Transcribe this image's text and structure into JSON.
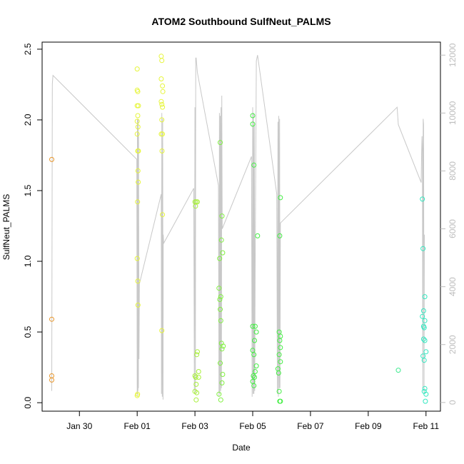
{
  "chart_data": {
    "type": "scatter",
    "title": "ATOM2 Southbound SulfNeut_PALMS",
    "xlabel": "Date",
    "ylabel": "SulfNeut_PALMS",
    "xlim": [
      "2017-01-28T17:00",
      "2017-02-11T12:00"
    ],
    "ylim": [
      -0.06,
      2.55
    ],
    "y2lim": [
      -300,
      12450
    ],
    "x_ticks": [
      {
        "date": "2017-01-30",
        "label": "Jan 30"
      },
      {
        "date": "2017-02-01",
        "label": "Feb 01"
      },
      {
        "date": "2017-02-03",
        "label": "Feb 03"
      },
      {
        "date": "2017-02-05",
        "label": "Feb 05"
      },
      {
        "date": "2017-02-07",
        "label": "Feb 07"
      },
      {
        "date": "2017-02-09",
        "label": "Feb 09"
      },
      {
        "date": "2017-02-11",
        "label": "Feb 11"
      }
    ],
    "y_ticks": [
      "0.0",
      "0.5",
      "1.0",
      "1.5",
      "2.0",
      "2.5"
    ],
    "y2_ticks": [
      "0",
      "2000",
      "4000",
      "6000",
      "8000",
      "10000",
      "12000"
    ],
    "grid": false,
    "colors": {
      "points_start": "#e8952a",
      "points_yellow": "#e6f53a",
      "points_green": "#44ee44",
      "points_end": "#33e8c0",
      "altitude_line": "#c8c8c8",
      "axis": "#000000",
      "right_axis": "#bdbdbd"
    },
    "series": [
      {
        "mark": "points",
        "points": [
          [
            "2017-01-29T01:00",
            1.72,
            "#e8952a"
          ],
          [
            "2017-01-29T01:00",
            0.59,
            "#e8952a"
          ],
          [
            "2017-01-29T01:00",
            0.19,
            "#e8952a"
          ],
          [
            "2017-01-29T01:00",
            0.16,
            "#e8952a"
          ],
          [
            "2017-02-01T00:00",
            2.36,
            "#e6f53a"
          ],
          [
            "2017-02-01T00:00",
            2.21,
            "#e6f53a"
          ],
          [
            "2017-02-01T00:30",
            2.2,
            "#e6f53a"
          ],
          [
            "2017-02-01T00:00",
            2.1,
            "#e6f53a"
          ],
          [
            "2017-02-01T01:00",
            2.1,
            "#e6f53a"
          ],
          [
            "2017-02-01T00:30",
            2.03,
            "#e6f53a"
          ],
          [
            "2017-02-01T00:00",
            1.99,
            "#e6f53a"
          ],
          [
            "2017-02-01T00:40",
            1.95,
            "#e6f53a"
          ],
          [
            "2017-02-01T00:00",
            1.9,
            "#e6f53a"
          ],
          [
            "2017-02-01T00:30",
            1.78,
            "#e6f53a"
          ],
          [
            "2017-02-01T01:00",
            1.78,
            "#e6f53a"
          ],
          [
            "2017-02-01T00:40",
            1.64,
            "#e6f53a"
          ],
          [
            "2017-02-01T00:50",
            1.56,
            "#e6f53a"
          ],
          [
            "2017-02-01T00:20",
            1.42,
            "#e6f53a"
          ],
          [
            "2017-02-01T00:00",
            1.02,
            "#e6f53a"
          ],
          [
            "2017-02-01T00:30",
            0.86,
            "#e6f53a"
          ],
          [
            "2017-02-01T00:40",
            0.69,
            "#e6f53a"
          ],
          [
            "2017-02-01T00:20",
            0.06,
            "#e6f53a"
          ],
          [
            "2017-02-01T00:00",
            0.05,
            "#e6f53a"
          ],
          [
            "2017-02-01T20:00",
            2.45,
            "#e6f53a"
          ],
          [
            "2017-02-01T20:30",
            2.42,
            "#e6f53a"
          ],
          [
            "2017-02-01T20:00",
            2.29,
            "#e6f53a"
          ],
          [
            "2017-02-01T21:00",
            2.24,
            "#e6f53a"
          ],
          [
            "2017-02-01T21:20",
            2.2,
            "#e6f53a"
          ],
          [
            "2017-02-01T20:00",
            2.13,
            "#e6f53a"
          ],
          [
            "2017-02-01T20:30",
            2.11,
            "#e6f53a"
          ],
          [
            "2017-02-01T21:00",
            2.09,
            "#e6f53a"
          ],
          [
            "2017-02-01T20:30",
            2.0,
            "#e6f53a"
          ],
          [
            "2017-02-01T20:00",
            1.9,
            "#e6f53a"
          ],
          [
            "2017-02-01T21:00",
            1.9,
            "#e6f53a"
          ],
          [
            "2017-02-01T20:40",
            1.78,
            "#e6f53a"
          ],
          [
            "2017-02-01T21:00",
            1.33,
            "#e6f53a"
          ],
          [
            "2017-02-01T20:30",
            0.51,
            "#e6f53a"
          ],
          [
            "2017-02-03T00:00",
            1.42,
            "#a8f03a"
          ],
          [
            "2017-02-03T01:00",
            1.42,
            "#a8f03a"
          ],
          [
            "2017-02-03T02:00",
            1.42,
            "#a8f03a"
          ],
          [
            "2017-02-03T00:30",
            1.39,
            "#a8f03a"
          ],
          [
            "2017-02-03T02:00",
            0.36,
            "#a8f03a"
          ],
          [
            "2017-02-03T01:30",
            0.34,
            "#a8f03a"
          ],
          [
            "2017-02-03T03:00",
            0.22,
            "#a8f03a"
          ],
          [
            "2017-02-03T00:00",
            0.19,
            "#a8f03a"
          ],
          [
            "2017-02-03T00:40",
            0.18,
            "#a8f03a"
          ],
          [
            "2017-02-03T03:00",
            0.18,
            "#a8f03a"
          ],
          [
            "2017-02-03T01:00",
            0.13,
            "#a8f03a"
          ],
          [
            "2017-02-03T00:00",
            0.08,
            "#a8f03a"
          ],
          [
            "2017-02-03T01:30",
            0.07,
            "#a8f03a"
          ],
          [
            "2017-02-03T01:00",
            0.02,
            "#a8f03a"
          ],
          [
            "2017-02-03T21:00",
            1.84,
            "#80f040"
          ],
          [
            "2017-02-03T22:30",
            1.32,
            "#80f040"
          ],
          [
            "2017-02-03T22:00",
            1.15,
            "#80f040"
          ],
          [
            "2017-02-03T23:00",
            1.06,
            "#80f040"
          ],
          [
            "2017-02-03T20:30",
            1.02,
            "#80f040"
          ],
          [
            "2017-02-03T20:00",
            0.81,
            "#80f040"
          ],
          [
            "2017-02-03T21:30",
            0.75,
            "#80f040"
          ],
          [
            "2017-02-03T20:40",
            0.73,
            "#80f040"
          ],
          [
            "2017-02-03T21:00",
            0.66,
            "#80f040"
          ],
          [
            "2017-02-03T21:30",
            0.58,
            "#80f040"
          ],
          [
            "2017-02-03T22:00",
            0.42,
            "#80f040"
          ],
          [
            "2017-02-03T23:30",
            0.4,
            "#80f040"
          ],
          [
            "2017-02-03T22:30",
            0.38,
            "#80f040"
          ],
          [
            "2017-02-03T21:00",
            0.28,
            "#80f040"
          ],
          [
            "2017-02-03T23:00",
            0.2,
            "#80f040"
          ],
          [
            "2017-02-03T22:30",
            0.14,
            "#80f040"
          ],
          [
            "2017-02-03T20:00",
            0.06,
            "#80f040"
          ],
          [
            "2017-02-03T21:30",
            0.02,
            "#80f040"
          ],
          [
            "2017-02-05T00:00",
            2.03,
            "#44ee44"
          ],
          [
            "2017-02-05T00:00",
            1.97,
            "#44ee44"
          ],
          [
            "2017-02-05T01:00",
            1.68,
            "#44ee44"
          ],
          [
            "2017-02-05T04:00",
            1.18,
            "#44ee44"
          ],
          [
            "2017-02-05T00:00",
            0.54,
            "#44ee44"
          ],
          [
            "2017-02-05T02:00",
            0.54,
            "#44ee44"
          ],
          [
            "2017-02-05T03:00",
            0.5,
            "#44ee44"
          ],
          [
            "2017-02-05T01:30",
            0.44,
            "#44ee44"
          ],
          [
            "2017-02-05T00:00",
            0.37,
            "#44ee44"
          ],
          [
            "2017-02-05T01:00",
            0.34,
            "#44ee44"
          ],
          [
            "2017-02-05T03:00",
            0.26,
            "#44ee44"
          ],
          [
            "2017-02-05T02:00",
            0.22,
            "#44ee44"
          ],
          [
            "2017-02-05T00:30",
            0.19,
            "#44ee44"
          ],
          [
            "2017-02-05T01:30",
            0.18,
            "#44ee44"
          ],
          [
            "2017-02-05T00:00",
            0.15,
            "#44ee44"
          ],
          [
            "2017-02-05T01:00",
            0.12,
            "#44ee44"
          ],
          [
            "2017-02-05T23:00",
            1.45,
            "#44ee44"
          ],
          [
            "2017-02-05T22:30",
            1.18,
            "#44ee44"
          ],
          [
            "2017-02-05T22:00",
            0.5,
            "#44ee44"
          ],
          [
            "2017-02-05T23:00",
            0.47,
            "#44ee44"
          ],
          [
            "2017-02-05T22:30",
            0.44,
            "#44ee44"
          ],
          [
            "2017-02-05T23:00",
            0.39,
            "#44ee44"
          ],
          [
            "2017-02-05T22:00",
            0.34,
            "#44ee44"
          ],
          [
            "2017-02-05T23:00",
            0.29,
            "#44ee44"
          ],
          [
            "2017-02-05T21:00",
            0.24,
            "#44ee44"
          ],
          [
            "2017-02-05T21:30",
            0.21,
            "#44ee44"
          ],
          [
            "2017-02-05T22:00",
            0.08,
            "#44ee44"
          ],
          [
            "2017-02-05T22:30",
            0.01,
            "#44ee44"
          ],
          [
            "2017-02-05T23:00",
            0.01,
            "#44ee44"
          ],
          [
            "2017-02-10T01:00",
            0.23,
            "#40ea90"
          ],
          [
            "2017-02-10T21:00",
            1.44,
            "#33e8c0"
          ],
          [
            "2017-02-10T21:30",
            1.09,
            "#33e8c0"
          ],
          [
            "2017-02-10T23:00",
            0.75,
            "#33e8c0"
          ],
          [
            "2017-02-10T22:00",
            0.65,
            "#33e8c0"
          ],
          [
            "2017-02-10T21:00",
            0.61,
            "#33e8c0"
          ],
          [
            "2017-02-10T23:00",
            0.58,
            "#33e8c0"
          ],
          [
            "2017-02-10T22:00",
            0.54,
            "#33e8c0"
          ],
          [
            "2017-02-10T22:30",
            0.53,
            "#33e8c0"
          ],
          [
            "2017-02-10T22:00",
            0.45,
            "#33e8c0"
          ],
          [
            "2017-02-10T23:00",
            0.44,
            "#33e8c0"
          ],
          [
            "2017-02-11T00:00",
            0.36,
            "#33e8c0"
          ],
          [
            "2017-02-10T21:30",
            0.33,
            "#33e8c0"
          ],
          [
            "2017-02-10T22:30",
            0.3,
            "#33e8c0"
          ],
          [
            "2017-02-10T23:00",
            0.1,
            "#33e8c0"
          ],
          [
            "2017-02-10T22:30",
            0.08,
            "#33e8c0"
          ],
          [
            "2017-02-11T00:00",
            0.06,
            "#33e8c0"
          ],
          [
            "2017-02-10T23:30",
            0.01,
            "#33e8c0"
          ]
        ]
      },
      {
        "mark": "line",
        "axis": "right",
        "points": [
          [
            "2017-01-29T01:00",
            400
          ],
          [
            "2017-01-29T01:30",
            11000
          ],
          [
            "2017-01-29T02:00",
            11300
          ],
          [
            "2017-01-31T23:40",
            8400
          ],
          [
            "2017-02-01T00:00",
            200
          ],
          [
            "2017-02-01T00:10",
            9800
          ],
          [
            "2017-02-01T00:20",
            300
          ],
          [
            "2017-02-01T00:30",
            9500
          ],
          [
            "2017-02-01T00:40",
            400
          ],
          [
            "2017-02-01T00:50",
            9800
          ],
          [
            "2017-02-01T01:00",
            500
          ],
          [
            "2017-02-01T01:10",
            9200
          ],
          [
            "2017-02-01T01:30",
            1500
          ],
          [
            "2017-02-01T01:50",
            4100
          ],
          [
            "2017-02-01T20:00",
            7200
          ],
          [
            "2017-02-01T20:10",
            300
          ],
          [
            "2017-02-01T20:30",
            10000
          ],
          [
            "2017-02-01T20:50",
            200
          ],
          [
            "2017-02-01T21:10",
            9800
          ],
          [
            "2017-02-01T21:30",
            100
          ],
          [
            "2017-02-01T21:40",
            5800
          ],
          [
            "2017-02-01T22:00",
            5500
          ],
          [
            "2017-02-02T23:00",
            7400
          ],
          [
            "2017-02-02T23:30",
            400
          ],
          [
            "2017-02-03T00:00",
            10200
          ],
          [
            "2017-02-03T00:20",
            300
          ],
          [
            "2017-02-03T00:40",
            11900
          ],
          [
            "2017-02-03T01:00",
            11900
          ],
          [
            "2017-02-03T02:00",
            11400
          ],
          [
            "2017-02-03T19:30",
            7500
          ],
          [
            "2017-02-03T20:00",
            200
          ],
          [
            "2017-02-03T20:20",
            10000
          ],
          [
            "2017-02-03T20:40",
            300
          ],
          [
            "2017-02-03T21:00",
            9900
          ],
          [
            "2017-02-03T21:20",
            400
          ],
          [
            "2017-02-03T21:40",
            10200
          ],
          [
            "2017-02-03T22:00",
            500
          ],
          [
            "2017-02-03T22:20",
            10600
          ],
          [
            "2017-02-03T22:40",
            6000
          ],
          [
            "2017-02-04T23:00",
            8500
          ],
          [
            "2017-02-04T23:30",
            200
          ],
          [
            "2017-02-05T00:00",
            10200
          ],
          [
            "2017-02-05T00:20",
            300
          ],
          [
            "2017-02-05T00:40",
            10000
          ],
          [
            "2017-02-05T01:00",
            300
          ],
          [
            "2017-02-05T01:20",
            9600
          ],
          [
            "2017-02-05T01:40",
            400
          ],
          [
            "2017-02-05T02:00",
            4500
          ],
          [
            "2017-02-05T03:00",
            11800
          ],
          [
            "2017-02-05T04:00",
            12000
          ],
          [
            "2017-02-05T20:00",
            7200
          ],
          [
            "2017-02-05T20:30",
            300
          ],
          [
            "2017-02-05T21:00",
            9700
          ],
          [
            "2017-02-05T21:20",
            200
          ],
          [
            "2017-02-05T21:40",
            9900
          ],
          [
            "2017-02-05T22:00",
            500
          ],
          [
            "2017-02-05T22:20",
            9800
          ],
          [
            "2017-02-05T22:40",
            500
          ],
          [
            "2017-02-05T23:00",
            6200
          ],
          [
            "2017-02-10T00:00",
            10200
          ],
          [
            "2017-02-10T01:00",
            9600
          ],
          [
            "2017-02-10T20:00",
            7600
          ],
          [
            "2017-02-10T20:20",
            8600
          ],
          [
            "2017-02-10T20:40",
            9200
          ],
          [
            "2017-02-10T21:00",
            8800
          ],
          [
            "2017-02-10T21:20",
            500
          ],
          [
            "2017-02-10T21:40",
            9800
          ],
          [
            "2017-02-10T22:00",
            9600
          ],
          [
            "2017-02-10T22:20",
            300
          ],
          [
            "2017-02-10T22:40",
            5800
          ]
        ]
      }
    ]
  }
}
